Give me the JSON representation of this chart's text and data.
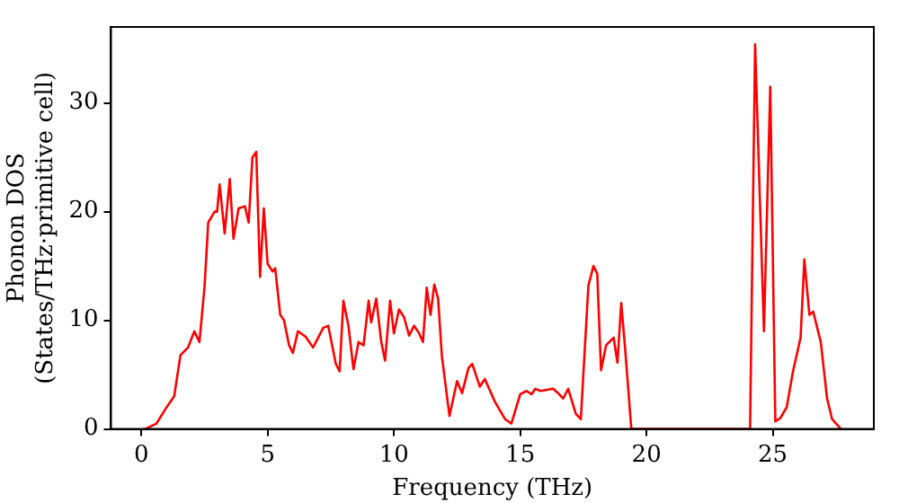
{
  "chart_data": {
    "type": "line",
    "xlabel": "Frequency (THz)",
    "ylabel": "Phonon DOS\n(States/THz·primitive cell)",
    "xlim": [
      -1.2,
      29
    ],
    "ylim": [
      0,
      37
    ],
    "xticks": [
      0,
      5,
      10,
      15,
      20,
      25
    ],
    "yticks": [
      0,
      10,
      20,
      30
    ],
    "grid": false,
    "legend": false,
    "marker": "none",
    "line_style": "solid",
    "x": [
      0.15,
      0.6,
      1.0,
      1.3,
      1.55,
      1.85,
      2.1,
      2.3,
      2.5,
      2.65,
      2.9,
      3.0,
      3.1,
      3.3,
      3.5,
      3.65,
      3.85,
      4.1,
      4.25,
      4.4,
      4.55,
      4.7,
      4.85,
      5.0,
      5.2,
      5.3,
      5.5,
      5.65,
      5.85,
      6.0,
      6.2,
      6.5,
      6.8,
      7.2,
      7.4,
      7.7,
      7.85,
      8.0,
      8.2,
      8.4,
      8.6,
      8.8,
      9.0,
      9.1,
      9.3,
      9.5,
      9.65,
      9.85,
      10.0,
      10.2,
      10.4,
      10.6,
      10.8,
      11.0,
      11.15,
      11.3,
      11.45,
      11.6,
      11.75,
      11.9,
      12.2,
      12.5,
      12.7,
      12.95,
      13.1,
      13.4,
      13.6,
      14.0,
      14.4,
      14.65,
      15.0,
      15.25,
      15.45,
      15.6,
      15.8,
      16.3,
      16.5,
      16.7,
      16.9,
      17.2,
      17.4,
      17.7,
      17.9,
      18.05,
      18.2,
      18.4,
      18.7,
      18.85,
      19.0,
      19.15,
      19.4,
      24.1,
      24.3,
      24.65,
      24.9,
      25.1,
      25.3,
      25.55,
      25.8,
      26.1,
      26.25,
      26.45,
      26.6,
      26.9,
      27.15,
      27.35,
      27.7
    ],
    "series": [
      {
        "color": "#ff0000",
        "values": [
          0,
          0.5,
          2,
          3,
          6.8,
          7.5,
          9,
          8,
          13,
          19,
          20,
          20,
          22.5,
          18,
          23,
          17.5,
          20.3,
          20.5,
          19,
          25,
          25.5,
          14,
          20.3,
          15.2,
          14.5,
          14.8,
          10.5,
          10,
          7.7,
          7,
          9,
          8.5,
          7.5,
          9.3,
          9.5,
          6,
          5.3,
          11.8,
          9.5,
          5.5,
          8,
          7.7,
          11.8,
          9.8,
          12,
          8,
          6.3,
          11.8,
          8.8,
          11,
          10.3,
          8.6,
          9.5,
          8.8,
          8,
          13,
          10.5,
          13.3,
          12,
          6.7,
          1.2,
          4.4,
          3.3,
          5.6,
          6,
          3.9,
          4.6,
          2.5,
          0.9,
          0.5,
          3.2,
          3.5,
          3.2,
          3.7,
          3.5,
          3.7,
          3.3,
          2.8,
          3.7,
          1.4,
          0.9,
          13.2,
          15,
          14.3,
          5.4,
          7.7,
          8.4,
          6.1,
          11.6,
          7.5,
          0,
          0,
          35.4,
          9,
          31.5,
          0.7,
          1,
          2,
          5.3,
          8.4,
          15.6,
          10.5,
          10.8,
          8,
          2.8,
          0.9,
          0
        ]
      }
    ]
  }
}
